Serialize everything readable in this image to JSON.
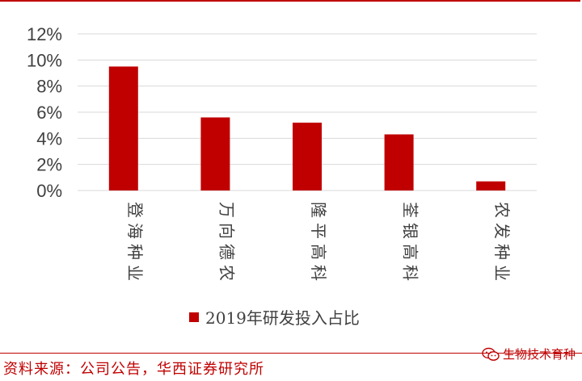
{
  "chart_data": {
    "type": "bar",
    "categories": [
      "登海种业",
      "万向德农",
      "隆平高科",
      "荃银高科",
      "农发种业"
    ],
    "series": [
      {
        "name": "2019年研发投入占比",
        "values": [
          9.5,
          5.6,
          5.2,
          4.3,
          0.7
        ],
        "color": "#c00000"
      }
    ],
    "yticks": [
      "0%",
      "2%",
      "4%",
      "6%",
      "8%",
      "10%",
      "12%"
    ],
    "ylim": [
      0,
      12
    ],
    "grid": true,
    "legend_position": "bottom"
  },
  "footer": {
    "source": "资料来源：公司公告，华西证券研究所",
    "watermark": "生物技术育种",
    "watermark_icon": "wechat-icon"
  },
  "colors": {
    "accent": "#c00000",
    "grid": "#d9d9d9",
    "text": "#404040"
  }
}
